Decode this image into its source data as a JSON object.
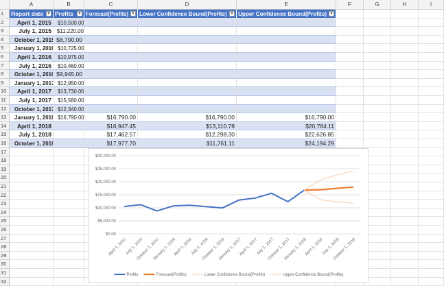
{
  "columns": [
    "A",
    "B",
    "C",
    "D",
    "E",
    "F",
    "G",
    "H",
    "I"
  ],
  "table": {
    "headers": [
      "Report date",
      "Profits",
      "Forecast(Profits)",
      "Lower Confidence Bound(Profits)",
      "Upper Confidence Bound(Profits)"
    ],
    "rows": [
      [
        "April 1, 2015",
        "$10,500.00",
        "",
        "",
        ""
      ],
      [
        "July 1, 2015",
        "$11,220.00",
        "",
        "",
        ""
      ],
      [
        "October 1, 2015",
        "$8,790.00",
        "",
        "",
        ""
      ],
      [
        "January 1, 2016",
        "$10,725.00",
        "",
        "",
        ""
      ],
      [
        "April 1, 2016",
        "$10,975.00",
        "",
        "",
        ""
      ],
      [
        "July 1, 2016",
        "$10,460.00",
        "",
        "",
        ""
      ],
      [
        "October 1, 2016",
        "$9,945.00",
        "",
        "",
        ""
      ],
      [
        "January 1, 2017",
        "$12,950.00",
        "",
        "",
        ""
      ],
      [
        "April 1, 2017",
        "$13,730.00",
        "",
        "",
        ""
      ],
      [
        "July 1, 2017",
        "$15,580.00",
        "",
        "",
        ""
      ],
      [
        "October 1, 2017",
        "$12,340.00",
        "",
        "",
        ""
      ],
      [
        "January 1, 2018",
        "$16,790.00",
        "$16,790.00",
        "$16,790.00",
        "$16,790.00"
      ],
      [
        "April 1, 2018",
        "",
        "$16,947.45",
        "$13,110.78",
        "$20,784.11"
      ],
      [
        "July 1, 2018",
        "",
        "$17,462.57",
        "$12,298.30",
        "$22,626.85"
      ],
      [
        "October 1, 2018",
        "",
        "$17,977.70",
        "$11,761.11",
        "$24,194.29"
      ]
    ]
  },
  "chart_data": {
    "type": "line",
    "categories": [
      "April 1, 2015",
      "July 1, 2015",
      "October 1, 2015",
      "January 1, 2016",
      "April 1, 2016",
      "July 1, 2016",
      "October 1, 2016",
      "January 1, 2017",
      "April 1, 2017",
      "July 1, 2017",
      "October 1, 2017",
      "January 1, 2018",
      "April 1, 2018",
      "July 1, 2018",
      "October 1, 2018"
    ],
    "ylim": [
      0,
      30000
    ],
    "yticks": [
      "$0.00",
      "$5,000.00",
      "$10,000.00",
      "$15,000.00",
      "$20,000.00",
      "$25,000.00",
      "$30,000.00"
    ],
    "grid": true,
    "legend_position": "bottom",
    "series": [
      {
        "name": "Profits",
        "color": "#4472c4",
        "values": [
          10500,
          11220,
          8790,
          10725,
          10975,
          10460,
          9945,
          12950,
          13730,
          15580,
          12340,
          16790,
          null,
          null,
          null
        ]
      },
      {
        "name": "Forecast(Profits)",
        "color": "#ed7d31",
        "values": [
          null,
          null,
          null,
          null,
          null,
          null,
          null,
          null,
          null,
          null,
          null,
          16790,
          16947.45,
          17462.57,
          17977.7
        ]
      },
      {
        "name": "Lower Confidence Bound(Profits)",
        "color": "#f8cbad",
        "values": [
          null,
          null,
          null,
          null,
          null,
          null,
          null,
          null,
          null,
          null,
          null,
          16790,
          13110.78,
          12298.3,
          11761.11
        ]
      },
      {
        "name": "Upper Confidence Bound(Profits)",
        "color": "#f8cbad",
        "values": [
          null,
          null,
          null,
          null,
          null,
          null,
          null,
          null,
          null,
          null,
          null,
          16790,
          20784.11,
          22626.85,
          24194.29
        ]
      }
    ]
  }
}
